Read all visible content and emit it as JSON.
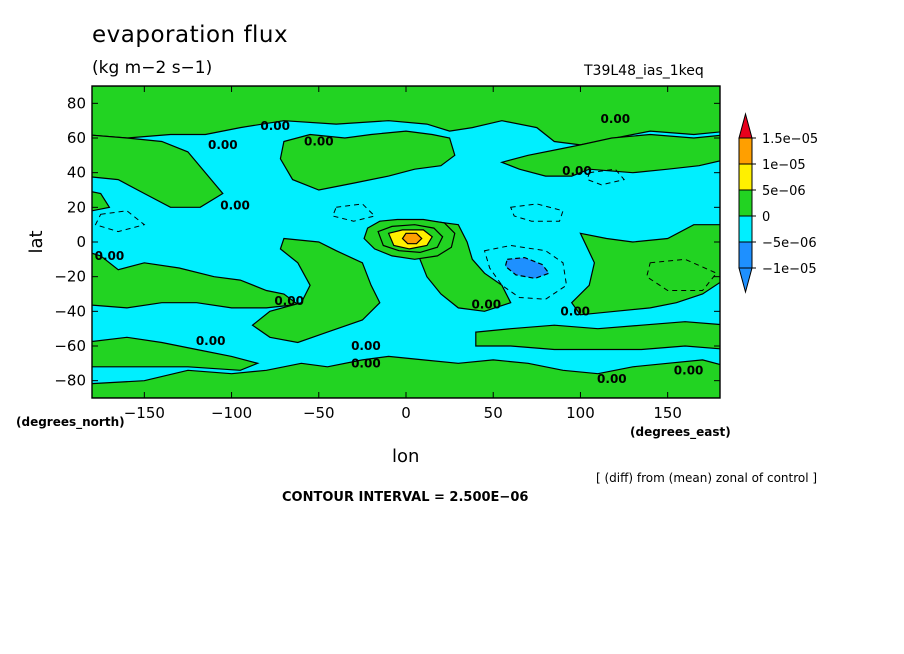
{
  "chart_data": {
    "type": "heatmap",
    "subtype": "filled-contour-map",
    "title": "evaporation flux",
    "units": "(kg m−2 s−1)",
    "run_label": "T39L48_ias_1keq",
    "xlabel": "lon",
    "ylabel": "lat",
    "x_unit": "(degrees_east)",
    "y_unit": "(degrees_north)",
    "xlim": [
      -180,
      180
    ],
    "ylim": [
      -90,
      90
    ],
    "x_ticks": [
      -150,
      -100,
      -50,
      0,
      50,
      100,
      150
    ],
    "y_ticks": [
      -80,
      -60,
      -40,
      -20,
      0,
      20,
      40,
      60,
      80
    ],
    "x_tick_labels": [
      "−150",
      "−100",
      "−50",
      "0",
      "50",
      "100",
      "150"
    ],
    "y_tick_labels": [
      "−80",
      "−60",
      "−40",
      "−20",
      "0",
      "20",
      "40",
      "60",
      "80"
    ],
    "contour_interval_text": "CONTOUR INTERVAL = 2.500E−06",
    "note": "[ (diff) from (mean) zonal of control ]",
    "colorbar": {
      "labels": [
        "1.5e−05",
        "1e−05",
        "5e−06",
        "0",
        "−5e−06",
        "−1e−05"
      ],
      "levels": [
        1.5e-05,
        1e-05,
        5e-06,
        0,
        -5e-06,
        -1e-05
      ],
      "colors": [
        "#e8001c",
        "#ff9f00",
        "#fff000",
        "#22d322",
        "#00efff",
        "#1e90ff",
        "#1e90ff"
      ]
    },
    "contour_labels": [
      {
        "text": "0.00",
        "lon": -75,
        "lat": 67
      },
      {
        "text": "0.00",
        "lon": -105,
        "lat": 56
      },
      {
        "text": "0.00",
        "lon": -50,
        "lat": 58
      },
      {
        "text": "0.00",
        "lon": -98,
        "lat": 21
      },
      {
        "text": "0.00",
        "lon": -170,
        "lat": -8
      },
      {
        "text": "0.00",
        "lon": -67,
        "lat": -34
      },
      {
        "text": "0.00",
        "lon": -112,
        "lat": -57
      },
      {
        "text": "0.00",
        "lon": -23,
        "lat": -60
      },
      {
        "text": "0.00",
        "lon": -23,
        "lat": -70
      },
      {
        "text": "0.00",
        "lon": 46,
        "lat": -36
      },
      {
        "text": "0.00",
        "lon": 97,
        "lat": -40
      },
      {
        "text": "0.00",
        "lon": 118,
        "lat": -79
      },
      {
        "text": "0.00",
        "lon": 162,
        "lat": -74
      },
      {
        "text": "0.00",
        "lon": 98,
        "lat": 41
      },
      {
        "text": "0.00",
        "lon": 120,
        "lat": 71
      }
    ],
    "regions_approx": [
      {
        "name": "positive-max",
        "lon": 5,
        "lat": 2,
        "value": 1e-05
      },
      {
        "name": "negative-min",
        "lon": 70,
        "lat": -15,
        "value": -7.5e-06
      }
    ]
  }
}
